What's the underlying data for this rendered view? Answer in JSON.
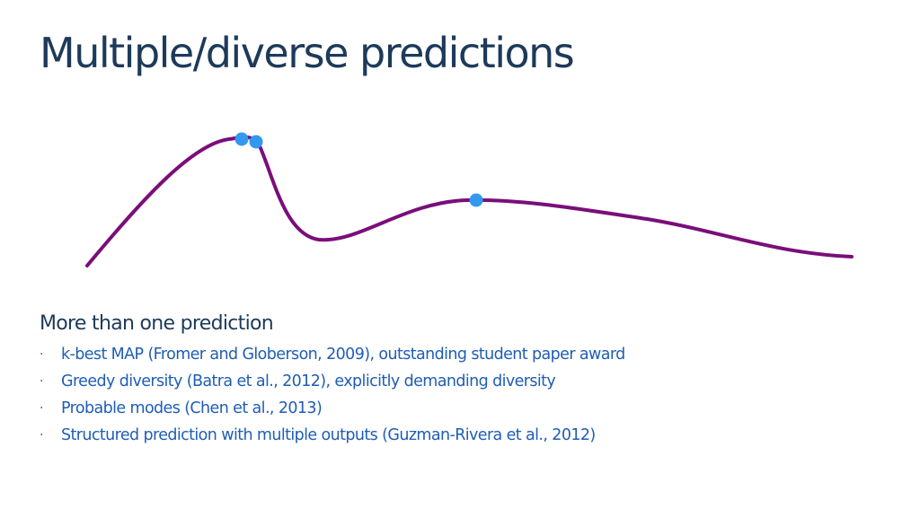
{
  "slide": {
    "title": "Multiple/diverse predictions",
    "lead": "More than one prediction",
    "bullets": [
      "k-best MAP (Fromer and Globerson, 2009), outstanding student paper award",
      "Greedy diversity (Batra et al., 2012), explicitly demanding diversity",
      "Probable modes (Chen et al., 2013)",
      "Structured prediction with multiple outputs (Guzman-Rivera et al., 2012)"
    ],
    "bullet_glyph": "·"
  },
  "colors": {
    "title": "#1d3a5a",
    "bullet_text": "#1f5db5",
    "curve": "#7a0e7a",
    "points": "#3399f0"
  }
}
